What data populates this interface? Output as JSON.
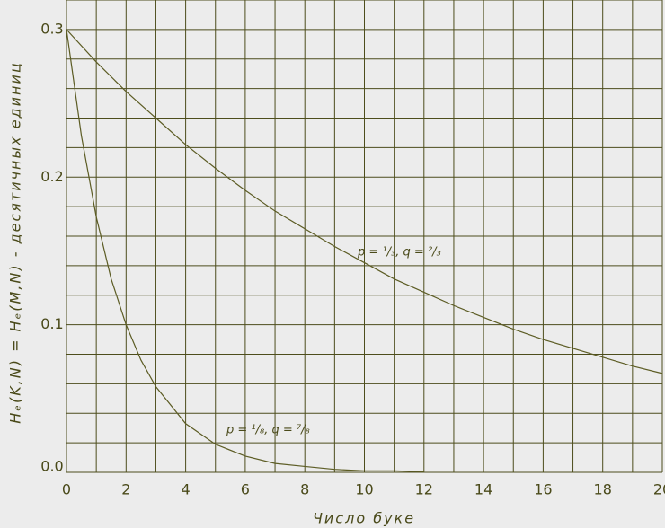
{
  "chart_data": {
    "type": "line",
    "x_label": "Число буке",
    "y_label": "Hₑ(K,N) = Hₑ(M,N) - десятичных единиц",
    "xlim": [
      0,
      20
    ],
    "ylim": [
      0,
      0.32
    ],
    "xticks": [
      0,
      2,
      4,
      6,
      8,
      10,
      12,
      14,
      16,
      18,
      20
    ],
    "yticks": [
      {
        "value": 0,
        "label": "0.0"
      },
      0.1,
      0.2,
      0.3
    ],
    "x_minor_ticks": [
      1,
      3,
      5,
      7,
      9,
      11,
      13,
      15,
      17,
      19
    ],
    "y_minor_ticks": [
      0.02,
      0.04,
      0.06,
      0.08,
      0.12,
      0.14,
      0.16,
      0.18,
      0.22,
      0.24,
      0.26,
      0.28,
      0.32
    ],
    "grid": true,
    "series": [
      {
        "name": "p = ¹/₃, q = ²/₃",
        "color": "#5c5c24",
        "x": [
          0,
          1,
          2,
          3,
          4,
          5,
          6,
          7,
          8,
          9,
          10,
          11,
          12,
          13,
          14,
          15,
          16,
          17,
          18,
          19,
          20
        ],
        "values": [
          0.3,
          0.278,
          0.258,
          0.24,
          0.222,
          0.206,
          0.191,
          0.177,
          0.165,
          0.153,
          0.142,
          0.131,
          0.122,
          0.113,
          0.105,
          0.097,
          0.09,
          0.084,
          0.078,
          0.072,
          0.067
        ]
      },
      {
        "name": "p = ¹/₈, q = ⁷/₈",
        "color": "#5c5c24",
        "x": [
          0,
          0.5,
          1,
          1.5,
          2,
          2.5,
          3,
          4,
          5,
          6,
          7,
          8,
          9,
          10,
          11,
          12
        ],
        "values": [
          0.3,
          0.228,
          0.173,
          0.131,
          0.1,
          0.076,
          0.058,
          0.033,
          0.019,
          0.011,
          0.006,
          0.004,
          0.002,
          0.001,
          0.001,
          0.0004
        ]
      }
    ]
  }
}
